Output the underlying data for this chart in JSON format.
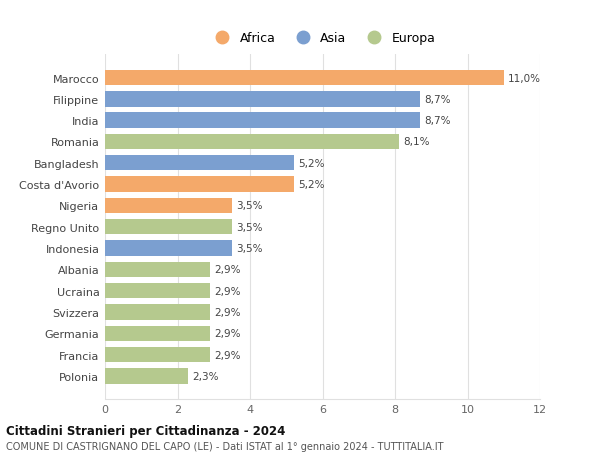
{
  "categories": [
    "Marocco",
    "Filippine",
    "India",
    "Romania",
    "Bangladesh",
    "Costa d'Avorio",
    "Nigeria",
    "Regno Unito",
    "Indonesia",
    "Albania",
    "Ucraina",
    "Svizzera",
    "Germania",
    "Francia",
    "Polonia"
  ],
  "values": [
    11.0,
    8.7,
    8.7,
    8.1,
    5.2,
    5.2,
    3.5,
    3.5,
    3.5,
    2.9,
    2.9,
    2.9,
    2.9,
    2.9,
    2.3
  ],
  "continents": [
    "Africa",
    "Asia",
    "Asia",
    "Europa",
    "Asia",
    "Africa",
    "Africa",
    "Europa",
    "Asia",
    "Europa",
    "Europa",
    "Europa",
    "Europa",
    "Europa",
    "Europa"
  ],
  "colors": {
    "Africa": "#F4A96A",
    "Asia": "#7B9FD0",
    "Europa": "#B5C98E"
  },
  "labels": [
    "11,0%",
    "8,7%",
    "8,7%",
    "8,1%",
    "5,2%",
    "5,2%",
    "3,5%",
    "3,5%",
    "3,5%",
    "2,9%",
    "2,9%",
    "2,9%",
    "2,9%",
    "2,9%",
    "2,3%"
  ],
  "title": "Cittadini Stranieri per Cittadinanza - 2024",
  "subtitle": "COMUNE DI CASTRIGNANO DEL CAPO (LE) - Dati ISTAT al 1° gennaio 2024 - TUTTITALIA.IT",
  "xlim": [
    0,
    12
  ],
  "xticks": [
    0,
    2,
    4,
    6,
    8,
    10,
    12
  ],
  "legend_labels": [
    "Africa",
    "Asia",
    "Europa"
  ],
  "background_color": "#ffffff",
  "grid_color": "#e0e0e0"
}
